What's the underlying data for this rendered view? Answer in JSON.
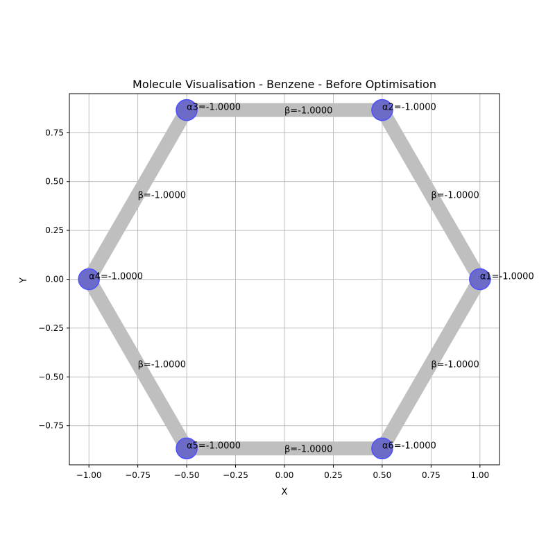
{
  "chart_data": {
    "type": "scatter",
    "title": "Molecule Visualisation - Benzene - Before Optimisation",
    "xlabel": "X",
    "ylabel": "Y",
    "xlim": [
      -1.1,
      1.1
    ],
    "ylim": [
      -0.95,
      0.95
    ],
    "xticks": [
      -1.0,
      -0.75,
      -0.5,
      -0.25,
      0.0,
      0.25,
      0.5,
      0.75,
      1.0
    ],
    "xtick_labels": [
      "−1.00",
      "−0.75",
      "−0.50",
      "−0.25",
      "0.00",
      "0.25",
      "0.50",
      "0.75",
      "1.00"
    ],
    "yticks": [
      -0.75,
      -0.5,
      -0.25,
      0.0,
      0.25,
      0.5,
      0.75
    ],
    "ytick_labels": [
      "−0.75",
      "−0.50",
      "−0.25",
      "0.00",
      "0.25",
      "0.50",
      "0.75"
    ],
    "grid": true,
    "atoms": [
      {
        "x": 1.0,
        "y": 0.0,
        "label": "α1=-1.0000"
      },
      {
        "x": 0.5,
        "y": 0.866,
        "label": "α2=-1.0000"
      },
      {
        "x": -0.5,
        "y": 0.866,
        "label": "α3=-1.0000"
      },
      {
        "x": -1.0,
        "y": 0.0,
        "label": "α4=-1.0000"
      },
      {
        "x": -0.5,
        "y": -0.866,
        "label": "α5=-1.0000"
      },
      {
        "x": 0.5,
        "y": -0.866,
        "label": "α6=-1.0000"
      }
    ],
    "bonds": [
      {
        "from": 0,
        "to": 1,
        "label": "β=-1.0000"
      },
      {
        "from": 1,
        "to": 2,
        "label": "β=-1.0000"
      },
      {
        "from": 2,
        "to": 3,
        "label": "β=-1.0000"
      },
      {
        "from": 3,
        "to": 4,
        "label": "β=-1.0000"
      },
      {
        "from": 4,
        "to": 5,
        "label": "β=-1.0000"
      },
      {
        "from": 5,
        "to": 0,
        "label": "β=-1.0000"
      }
    ],
    "colors": {
      "bond": "#bfbfbf",
      "atom_fill": "#6c6cc8",
      "atom_edge": "#4d4dff",
      "grid": "#b0b0b0"
    }
  }
}
